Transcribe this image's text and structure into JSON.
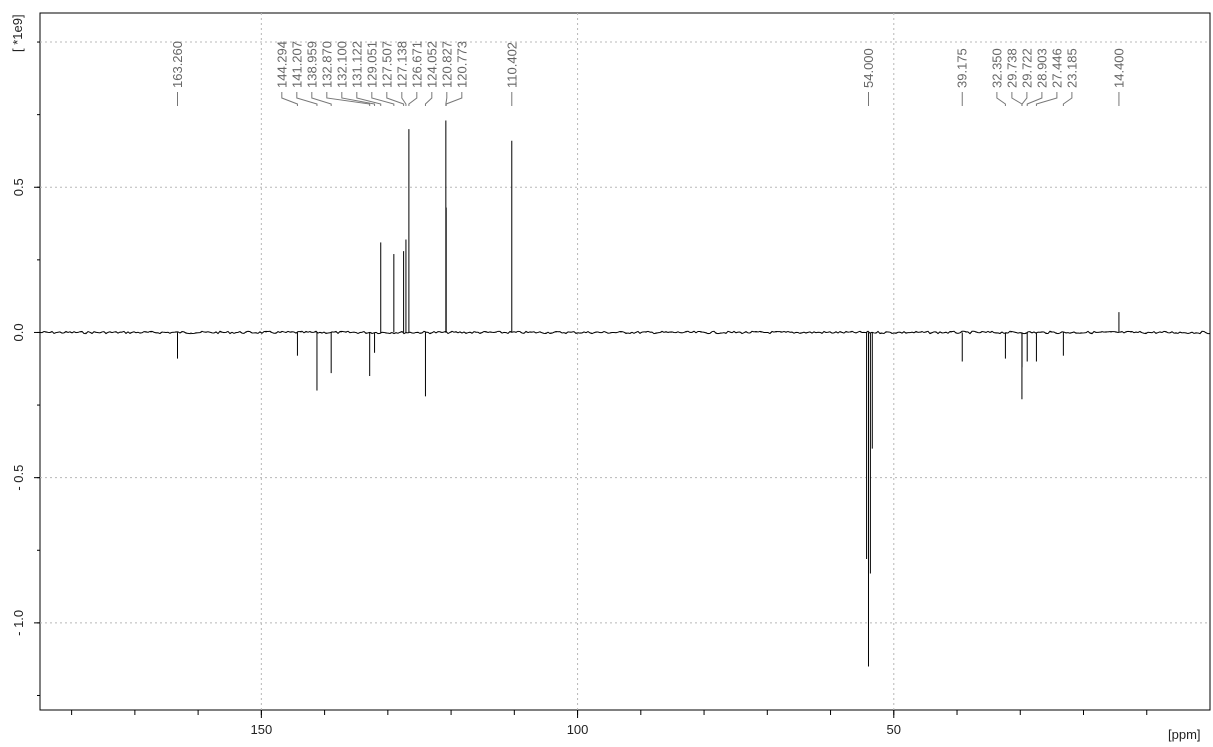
{
  "chart_data": {
    "type": "line",
    "x_unit_label": "[ppm]",
    "y_unit_label": "[ *1e9]",
    "xlim": [
      185,
      0
    ],
    "ylim": [
      -1.3,
      1.1
    ],
    "x_ticks": [
      {
        "value": 150,
        "label": "150"
      },
      {
        "value": 100,
        "label": "100"
      },
      {
        "value": 50,
        "label": "50"
      }
    ],
    "y_ticks": [
      {
        "value": 0.5,
        "label": "0.5"
      },
      {
        "value": 0.0,
        "label": "0.0"
      },
      {
        "value": -0.5,
        "label": "- 0.5"
      },
      {
        "value": -1.0,
        "label": "- 1.0"
      }
    ],
    "grid": true,
    "peak_labels": [
      "163.260",
      "144.294",
      "141.207",
      "138.959",
      "132.870",
      "132.100",
      "131.122",
      "129.051",
      "127.507",
      "127.138",
      "126.671",
      "124.052",
      "120.827",
      "120.773",
      "110.402",
      "54.000",
      "39.175",
      "32.350",
      "29.738",
      "29.722",
      "28.903",
      "27.446",
      "23.185",
      "14.400"
    ],
    "peaks": [
      {
        "x": 163.26,
        "y": -0.09
      },
      {
        "x": 144.294,
        "y": -0.08
      },
      {
        "x": 141.207,
        "y": -0.2
      },
      {
        "x": 138.959,
        "y": -0.14
      },
      {
        "x": 132.87,
        "y": -0.15
      },
      {
        "x": 132.1,
        "y": -0.07
      },
      {
        "x": 131.122,
        "y": 0.31
      },
      {
        "x": 129.051,
        "y": 0.27
      },
      {
        "x": 127.507,
        "y": 0.28
      },
      {
        "x": 127.138,
        "y": 0.32
      },
      {
        "x": 126.671,
        "y": 0.7
      },
      {
        "x": 124.052,
        "y": -0.22
      },
      {
        "x": 120.827,
        "y": 0.73
      },
      {
        "x": 120.773,
        "y": 0.43
      },
      {
        "x": 110.402,
        "y": 0.66
      },
      {
        "x": 54.3,
        "y": -0.78
      },
      {
        "x": 54.0,
        "y": -1.15
      },
      {
        "x": 53.7,
        "y": -0.83
      },
      {
        "x": 53.4,
        "y": -0.4
      },
      {
        "x": 39.175,
        "y": -0.1
      },
      {
        "x": 32.35,
        "y": -0.09
      },
      {
        "x": 29.738,
        "y": -0.23
      },
      {
        "x": 29.722,
        "y": -0.12
      },
      {
        "x": 28.903,
        "y": -0.1
      },
      {
        "x": 27.446,
        "y": -0.1
      },
      {
        "x": 23.185,
        "y": -0.08
      },
      {
        "x": 14.4,
        "y": 0.07
      }
    ]
  }
}
